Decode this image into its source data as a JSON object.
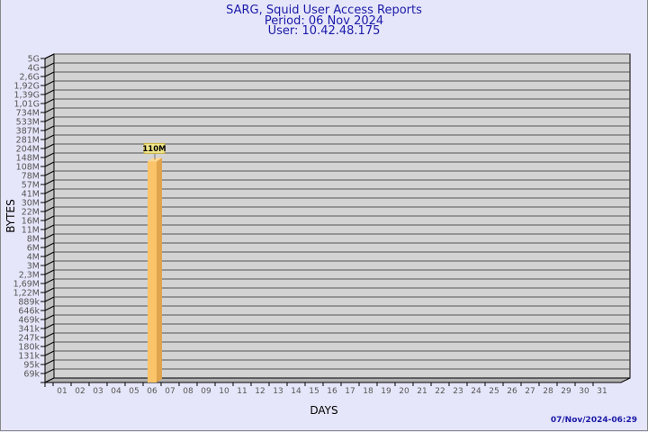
{
  "chart_data": {
    "type": "bar",
    "title": [
      "SARG, Squid User Access Reports",
      "Period: 06 Nov 2024",
      "User: 10.42.48.175"
    ],
    "xlabel": "DAYS",
    "ylabel": "BYTES",
    "y_scale": "log",
    "y_ticks": [
      "5G",
      "4G",
      "2,6G",
      "1,92G",
      "1,39G",
      "1,01G",
      "734M",
      "533M",
      "387M",
      "281M",
      "204M",
      "148M",
      "108M",
      "78M",
      "57M",
      "41M",
      "30M",
      "22M",
      "16M",
      "11M",
      "8M",
      "6M",
      "4M",
      "3M",
      "2,3M",
      "1,69M",
      "1,22M",
      "889k",
      "646k",
      "469k",
      "341k",
      "247k",
      "180k",
      "131k",
      "95k",
      "69k"
    ],
    "y_tick_values": [
      5000000000,
      4000000000,
      2600000000,
      1920000000,
      1390000000,
      1010000000,
      734000000,
      533000000,
      387000000,
      281000000,
      204000000,
      148000000,
      108000000,
      78000000,
      57000000,
      41000000,
      30000000,
      22000000,
      16000000,
      11000000,
      8000000,
      6000000,
      4000000,
      3000000,
      2300000,
      1690000,
      1220000,
      889000,
      646000,
      469000,
      341000,
      247000,
      180000,
      131000,
      95000,
      69000
    ],
    "categories": [
      "01",
      "02",
      "03",
      "04",
      "05",
      "06",
      "07",
      "08",
      "09",
      "10",
      "11",
      "12",
      "13",
      "14",
      "15",
      "16",
      "17",
      "18",
      "19",
      "20",
      "21",
      "22",
      "23",
      "24",
      "25",
      "26",
      "27",
      "28",
      "29",
      "30",
      "31"
    ],
    "bars": [
      {
        "category": "06",
        "value": 110000000,
        "label": "110M"
      }
    ],
    "grid": true,
    "colors": {
      "bar": "#fcc468",
      "bar_side": "#e0a44c",
      "plot_bg": "#d3d3d3",
      "wall": "#c0c0c0",
      "title": "#1a1aa8"
    }
  },
  "footer": {
    "timestamp": "07/Nov/2024-06:29"
  }
}
